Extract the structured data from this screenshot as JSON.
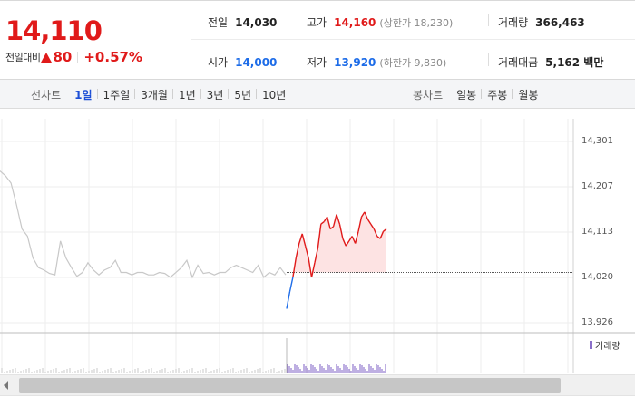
{
  "quote": {
    "price": "14,110",
    "change_label": "전일대비",
    "change_amount": "80",
    "change_percent": "+0.57%",
    "prev_close": {
      "label": "전일",
      "value": "14,030"
    },
    "high": {
      "label": "고가",
      "value": "14,160",
      "limit_label": "(상한가 18,230)"
    },
    "volume": {
      "label": "거래량",
      "value": "366,463"
    },
    "open": {
      "label": "시가",
      "value": "14,000"
    },
    "low": {
      "label": "저가",
      "value": "13,920",
      "limit_label": "(하한가 9,830)"
    },
    "trade_value": {
      "label": "거래대금",
      "value": "5,162 백만"
    },
    "colors": {
      "up": "#e01a1a",
      "down": "#1d6ce8"
    }
  },
  "toolbar": {
    "line_chart_label": "선차트",
    "line_periods": [
      "1일",
      "1주일",
      "3개월",
      "1년",
      "3년",
      "5년",
      "10년"
    ],
    "active_period": "1일",
    "candle_chart_label": "봉차트",
    "candle_periods": [
      "일봉",
      "주봉",
      "월봉"
    ]
  },
  "chart_data": {
    "type": "line",
    "y_ticks": [
      "14,301",
      "14,207",
      "14,113",
      "14,020",
      "13,926"
    ],
    "ylim": [
      13926,
      14301
    ],
    "reference_value": 14030,
    "volume_legend": "거래량",
    "series": [
      {
        "role": "previous",
        "color": "#c8c8c8",
        "values": [
          14240,
          14230,
          14215,
          14170,
          14120,
          14105,
          14060,
          14040,
          14035,
          14028,
          14025,
          14095,
          14060,
          14040,
          14022,
          14030,
          14050,
          14035,
          14025,
          14035,
          14040,
          14055,
          14030,
          14030,
          14025,
          14030,
          14030,
          14025,
          14025,
          14030,
          14028,
          14020,
          14030,
          14040,
          14055,
          14020,
          14045,
          14028,
          14030,
          14025,
          14030,
          14030,
          14040,
          14045,
          14040,
          14035,
          14030,
          14045,
          14020,
          14030,
          14025,
          14040,
          14025
        ]
      },
      {
        "role": "today",
        "color": "#e01a1a",
        "values": [
          13955,
          13990,
          14020,
          14060,
          14090,
          14110,
          14085,
          14060,
          14020,
          14050,
          14080,
          14130,
          14135,
          14145,
          14120,
          14125,
          14150,
          14130,
          14100,
          14085,
          14095,
          14105,
          14090,
          14115,
          14145,
          14155,
          14140,
          14130,
          14120,
          14105,
          14100,
          14115,
          14120
        ]
      }
    ]
  }
}
